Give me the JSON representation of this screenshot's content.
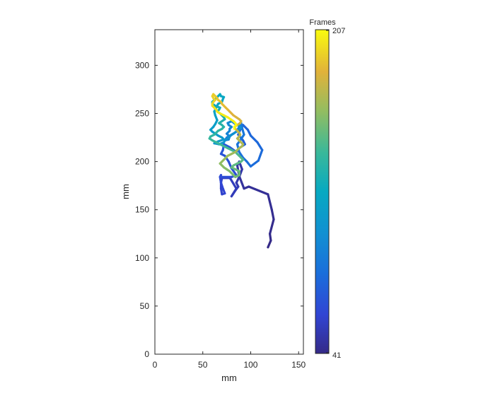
{
  "chart_data": {
    "type": "line",
    "xlabel": "mm",
    "ylabel": "mm",
    "xlim": [
      0,
      155
    ],
    "ylim": [
      0,
      337
    ],
    "xticks": [
      0,
      50,
      100,
      150
    ],
    "yticks": [
      0,
      50,
      100,
      150,
      200,
      250,
      300
    ],
    "grid": false,
    "colorbar": {
      "title": "Frames",
      "min": 41,
      "max": 207,
      "colormap": "parula",
      "placement": "right",
      "tick_labels": [
        "207",
        "41"
      ]
    },
    "series": [
      {
        "frames": [
          41,
          207
        ],
        "x": [
          118,
          121,
          120,
          124,
          122,
          118,
          98,
          93,
          88,
          86,
          88,
          91,
          88,
          85,
          87,
          84,
          80,
          85,
          79,
          78,
          70,
          69,
          69,
          70,
          73,
          71,
          69,
          68,
          69,
          68,
          80,
          85,
          80,
          77,
          73,
          69,
          71,
          72,
          78,
          85,
          88,
          94,
          92,
          87,
          89,
          92,
          97,
          100,
          107,
          112,
          108,
          100,
          96,
          92,
          88,
          86,
          89,
          93,
          91,
          90,
          88,
          85,
          80,
          75,
          73,
          77,
          78,
          75,
          78,
          78,
          80,
          77,
          76,
          80,
          84,
          88,
          90,
          86,
          82,
          79,
          76,
          73,
          72,
          67,
          62,
          66,
          72,
          70,
          66,
          63,
          60,
          58,
          61,
          63,
          65,
          63,
          62,
          64,
          66,
          70,
          71,
          72,
          69,
          68,
          66,
          64,
          62,
          60,
          60,
          63,
          68,
          67,
          65,
          68,
          70,
          72,
          73,
          70,
          67,
          70,
          72,
          70,
          66,
          64,
          62,
          58,
          57,
          60,
          64,
          68,
          72,
          76,
          80,
          84,
          86,
          88,
          90,
          92,
          90,
          86,
          82,
          80,
          84,
          88,
          88,
          88,
          86,
          84,
          82,
          80,
          78,
          75,
          72,
          70,
          68,
          70,
          72,
          74,
          76,
          80,
          84,
          86,
          88,
          91,
          92,
          90,
          88,
          86,
          88,
          89,
          88,
          86,
          84,
          83,
          86,
          89,
          90,
          88,
          85,
          82,
          80,
          78,
          76,
          74,
          72,
          70,
          69,
          66,
          65,
          63,
          61,
          60,
          61,
          63,
          61,
          60,
          60,
          62,
          64,
          65,
          68,
          72,
          76,
          79,
          82,
          84,
          85,
          83,
          83
        ],
        "y": [
          111,
          118,
          125,
          140,
          150,
          166,
          174,
          172,
          185,
          196,
          200,
          192,
          184,
          178,
          174,
          170,
          164,
          172,
          182,
          183,
          183,
          178,
          172,
          166,
          167,
          172,
          178,
          184,
          186,
          184,
          184,
          186,
          193,
          200,
          206,
          208,
          212,
          218,
          215,
          210,
          214,
          218,
          222,
          228,
          233,
          238,
          233,
          227,
          220,
          212,
          201,
          195,
          200,
          204,
          210,
          218,
          222,
          228,
          235,
          240,
          236,
          231,
          228,
          225,
          222,
          223,
          226,
          229,
          232,
          234,
          236,
          238,
          240,
          242,
          239,
          237,
          235,
          232,
          229,
          227,
          224,
          222,
          220,
          218,
          219,
          221,
          223,
          225,
          227,
          229,
          231,
          233,
          236,
          239,
          243,
          248,
          252,
          256,
          260,
          262,
          265,
          267,
          268,
          270,
          268,
          266,
          264,
          262,
          260,
          258,
          256,
          254,
          252,
          250,
          248,
          246,
          244,
          242,
          240,
          238,
          236,
          234,
          232,
          230,
          228,
          226,
          224,
          222,
          220,
          218,
          216,
          214,
          212,
          210,
          208,
          206,
          204,
          202,
          200,
          198,
          196,
          194,
          192,
          190,
          188,
          186,
          185,
          184,
          186,
          188,
          190,
          192,
          194,
          196,
          198,
          200,
          202,
          204,
          206,
          208,
          210,
          212,
          214,
          216,
          218,
          220,
          222,
          224,
          226,
          228,
          230,
          232,
          234,
          236,
          238,
          240,
          242,
          244,
          246,
          248,
          250,
          252,
          254,
          256,
          258,
          260,
          262,
          264,
          266,
          268,
          270,
          268,
          266,
          264,
          262,
          260,
          258,
          256,
          254,
          252,
          250,
          248,
          246,
          244,
          242,
          240,
          238,
          236,
          234
        ]
      }
    ]
  }
}
